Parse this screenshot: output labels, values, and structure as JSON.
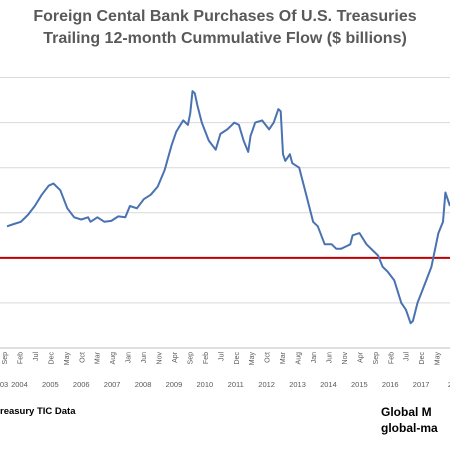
{
  "chart_data": {
    "type": "line",
    "title": "Foreign Cental Bank Purchases Of U.S. Treasuries",
    "subtitle": "Trailing 12-month Cummulative Flow ($ billions)",
    "xlabel": "",
    "ylabel": "",
    "grid": true,
    "legend": "none",
    "colors": {
      "series": "#4a72b2",
      "zero_line": "#c00000",
      "grid": "#d9d9d9",
      "text": "#595959"
    },
    "x_range": [
      "2002-10",
      "2018-12"
    ],
    "y_range": [
      -200,
      450
    ],
    "zero_line": 0,
    "x_tick_labels": [
      {
        "month": "Sep",
        "year": "03"
      },
      {
        "month": "Feb",
        "year": "2004"
      },
      {
        "month": "Jul",
        "year": ""
      },
      {
        "month": "Dec",
        "year": "2005"
      },
      {
        "month": "May",
        "year": ""
      },
      {
        "month": "Oct",
        "year": "2006"
      },
      {
        "month": "Mar",
        "year": ""
      },
      {
        "month": "Aug",
        "year": "2007"
      },
      {
        "month": "Jan",
        "year": ""
      },
      {
        "month": "Jun",
        "year": "2008"
      },
      {
        "month": "Nov",
        "year": ""
      },
      {
        "month": "Apr",
        "year": "2009"
      },
      {
        "month": "Sep",
        "year": ""
      },
      {
        "month": "Feb",
        "year": "2010"
      },
      {
        "month": "Jul",
        "year": ""
      },
      {
        "month": "Dec",
        "year": "2011"
      },
      {
        "month": "May",
        "year": ""
      },
      {
        "month": "Oct",
        "year": "2012"
      },
      {
        "month": "Mar",
        "year": ""
      },
      {
        "month": "Aug",
        "year": "2013"
      },
      {
        "month": "Jan",
        "year": ""
      },
      {
        "month": "Jun",
        "year": "2014"
      },
      {
        "month": "Nov",
        "year": ""
      },
      {
        "month": "Apr",
        "year": "2015"
      },
      {
        "month": "Sep",
        "year": ""
      },
      {
        "month": "Feb",
        "year": "2016"
      },
      {
        "month": "Jul",
        "year": ""
      },
      {
        "month": "Dec",
        "year": "2017"
      },
      {
        "month": "May",
        "year": ""
      },
      {
        "month": "Oct",
        "year": "20"
      },
      {
        "month": "Mar",
        "year": ""
      }
    ],
    "series": [
      {
        "points": [
          [
            "2003-01",
            70
          ],
          [
            "2003-04",
            75
          ],
          [
            "2003-07",
            80
          ],
          [
            "2003-10",
            95
          ],
          [
            "2004-01",
            115
          ],
          [
            "2004-04",
            140
          ],
          [
            "2004-07",
            160
          ],
          [
            "2004-09",
            165
          ],
          [
            "2004-12",
            150
          ],
          [
            "2005-03",
            110
          ],
          [
            "2005-06",
            90
          ],
          [
            "2005-09",
            85
          ],
          [
            "2005-12",
            90
          ],
          [
            "2006-01",
            80
          ],
          [
            "2006-04",
            90
          ],
          [
            "2006-07",
            80
          ],
          [
            "2006-10",
            82
          ],
          [
            "2007-01",
            92
          ],
          [
            "2007-04",
            90
          ],
          [
            "2007-06",
            115
          ],
          [
            "2007-09",
            110
          ],
          [
            "2007-12",
            130
          ],
          [
            "2008-03",
            140
          ],
          [
            "2008-06",
            158
          ],
          [
            "2008-09",
            195
          ],
          [
            "2008-12",
            250
          ],
          [
            "2009-02",
            280
          ],
          [
            "2009-05",
            305
          ],
          [
            "2009-07",
            295
          ],
          [
            "2009-08",
            320
          ],
          [
            "2009-09",
            370
          ],
          [
            "2009-10",
            365
          ],
          [
            "2009-11",
            340
          ],
          [
            "2010-01",
            300
          ],
          [
            "2010-04",
            260
          ],
          [
            "2010-07",
            240
          ],
          [
            "2010-09",
            275
          ],
          [
            "2010-12",
            285
          ],
          [
            "2011-03",
            300
          ],
          [
            "2011-05",
            295
          ],
          [
            "2011-07",
            260
          ],
          [
            "2011-09",
            235
          ],
          [
            "2011-10",
            270
          ],
          [
            "2011-12",
            300
          ],
          [
            "2012-03",
            305
          ],
          [
            "2012-06",
            285
          ],
          [
            "2012-08",
            300
          ],
          [
            "2012-10",
            330
          ],
          [
            "2012-11",
            325
          ],
          [
            "2012-12",
            230
          ],
          [
            "2013-01",
            215
          ],
          [
            "2013-03",
            230
          ],
          [
            "2013-04",
            210
          ],
          [
            "2013-07",
            200
          ],
          [
            "2013-10",
            140
          ],
          [
            "2013-12",
            100
          ],
          [
            "2014-01",
            80
          ],
          [
            "2014-03",
            70
          ],
          [
            "2014-06",
            30
          ],
          [
            "2014-09",
            30
          ],
          [
            "2014-11",
            20
          ],
          [
            "2015-01",
            20
          ],
          [
            "2015-03",
            25
          ],
          [
            "2015-05",
            30
          ],
          [
            "2015-06",
            50
          ],
          [
            "2015-09",
            55
          ],
          [
            "2015-12",
            30
          ],
          [
            "2016-03",
            15
          ],
          [
            "2016-05",
            5
          ],
          [
            "2016-07",
            -20
          ],
          [
            "2016-09",
            -30
          ],
          [
            "2016-12",
            -50
          ],
          [
            "2017-03",
            -100
          ],
          [
            "2017-05",
            -115
          ],
          [
            "2017-07",
            -145
          ],
          [
            "2017-08",
            -140
          ],
          [
            "2017-10",
            -100
          ],
          [
            "2018-01",
            -60
          ],
          [
            "2018-04",
            -20
          ],
          [
            "2018-07",
            55
          ],
          [
            "2018-09",
            80
          ],
          [
            "2018-10",
            145
          ],
          [
            "2018-12",
            115
          ]
        ]
      }
    ]
  },
  "source_note": "reasury TIC Data",
  "brand": {
    "line1": "Global M",
    "line2": "global-ma"
  }
}
